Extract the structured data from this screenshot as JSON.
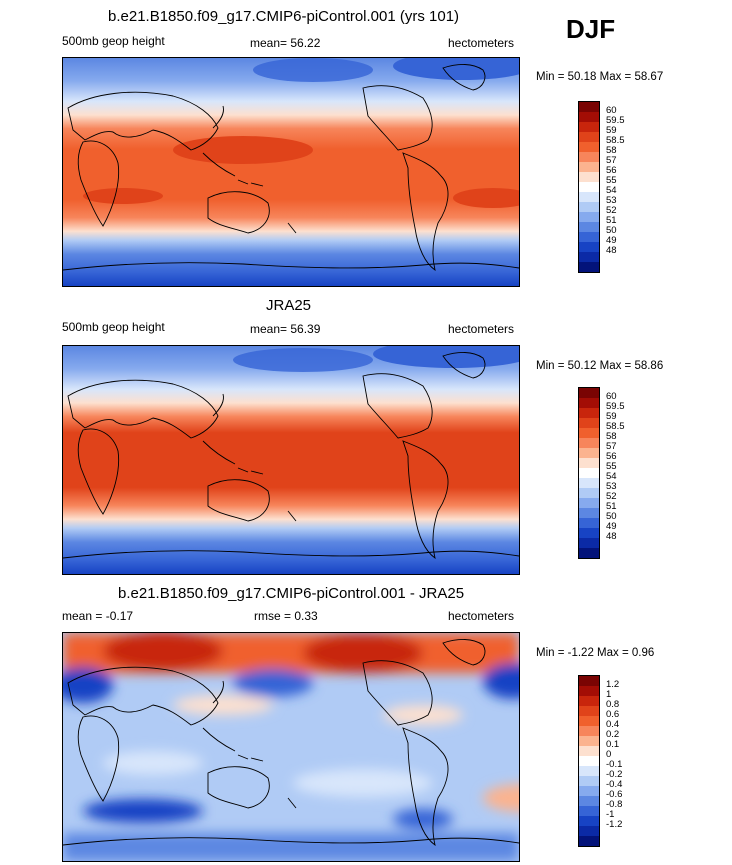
{
  "season": "DJF",
  "panels": [
    {
      "title": "b.e21.B1850.f09_g17.CMIP6-piControl.001 (yrs 101)",
      "left_label": "500mb geop height",
      "center_label": "mean=  56.22",
      "units": "hectometers",
      "minmax": "Min =  50.18 Max =  58.67",
      "colorbar": {
        "labels": [
          "60",
          "59.5",
          "59",
          "58.5",
          "58",
          "57",
          "56",
          "55",
          "54",
          "53",
          "52",
          "51",
          "50",
          "49",
          "48"
        ],
        "colors": [
          "#7a0403",
          "#a30d05",
          "#c8250c",
          "#e0431a",
          "#f0602d",
          "#f7855b",
          "#fbb38f",
          "#fde0cf",
          "#ffffff",
          "#d8e6fb",
          "#b0cbf5",
          "#86aaee",
          "#5c87e2",
          "#3664d6",
          "#1743c4",
          "#0b2aa6",
          "#03137a"
        ]
      }
    },
    {
      "title": "JRA25",
      "left_label": "500mb geop height",
      "center_label": "mean=  56.39",
      "units": "hectometers",
      "minmax": "Min =  50.12 Max =  58.86",
      "colorbar": {
        "labels": [
          "60",
          "59.5",
          "59",
          "58.5",
          "58",
          "57",
          "56",
          "55",
          "54",
          "53",
          "52",
          "51",
          "50",
          "49",
          "48"
        ],
        "colors": [
          "#7a0403",
          "#a30d05",
          "#c8250c",
          "#e0431a",
          "#f0602d",
          "#f7855b",
          "#fbb38f",
          "#fde0cf",
          "#ffffff",
          "#d8e6fb",
          "#b0cbf5",
          "#86aaee",
          "#5c87e2",
          "#3664d6",
          "#1743c4",
          "#0b2aa6",
          "#03137a"
        ]
      }
    },
    {
      "title": "b.e21.B1850.f09_g17.CMIP6-piControl.001 - JRA25",
      "left_label": "mean =  -0.17",
      "center_label": "rmse =   0.33",
      "units": "hectometers",
      "minmax": "Min =  -1.22 Max =   0.96",
      "colorbar": {
        "labels": [
          "1.2",
          "1",
          "0.8",
          "0.6",
          "0.4",
          "0.2",
          "0.1",
          "0",
          "-0.1",
          "-0.2",
          "-0.4",
          "-0.6",
          "-0.8",
          "-1",
          "-1.2"
        ],
        "colors": [
          "#7a0403",
          "#a30d05",
          "#c8250c",
          "#e0431a",
          "#f0602d",
          "#f7855b",
          "#fbb38f",
          "#fde0cf",
          "#ffffff",
          "#d8e6fb",
          "#b0cbf5",
          "#86aaee",
          "#5c87e2",
          "#3664d6",
          "#1743c4",
          "#0b2aa6",
          "#03137a"
        ]
      }
    }
  ]
}
